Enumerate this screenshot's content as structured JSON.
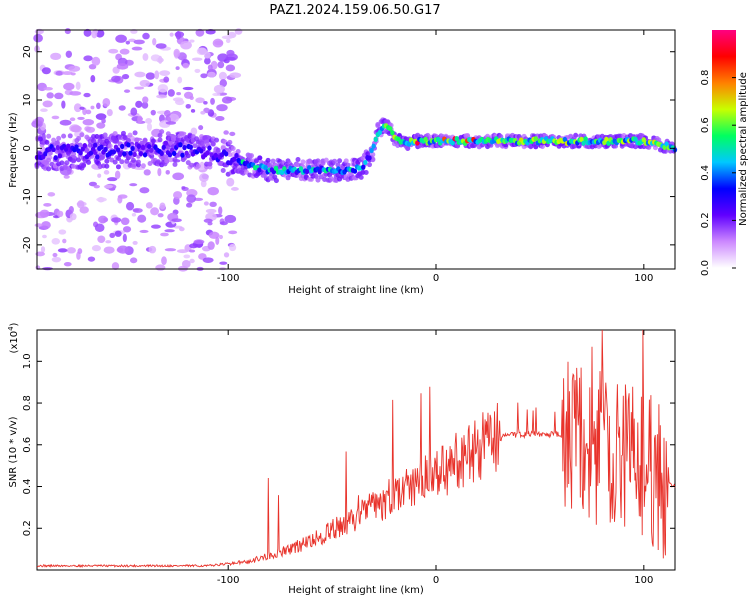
{
  "title": "PAZ1.2024.159.06.50.G17",
  "chart_data": [
    {
      "type": "heatmap",
      "xlabel": "Height of straight line (km)",
      "ylabel": "Frequency (Hz)",
      "xlim": [
        -192,
        115
      ],
      "ylim": [
        -25,
        24.5
      ],
      "x_ticks": [
        -100,
        0,
        100
      ],
      "x_tick_labels": [
        "-100",
        "0",
        "100"
      ],
      "y_ticks": [
        -20,
        -10,
        0,
        10,
        20
      ],
      "y_tick_labels": [
        "-20",
        "-10",
        "0",
        "10",
        "20"
      ],
      "colorbar": {
        "label": "Normalized spectral amplitude",
        "range": [
          0,
          1
        ],
        "ticks": [
          0.0,
          0.2,
          0.4,
          0.6,
          0.8
        ],
        "tick_labels": [
          "0.0",
          "0.2",
          "0.4",
          "0.6",
          "0.8"
        ],
        "colors": [
          "#ffffff",
          "#cc88ff",
          "#6000ff",
          "#0000ff",
          "#00c8ff",
          "#00ff60",
          "#c8ff00",
          "#ff8000",
          "#ff0000",
          "#ff0080"
        ]
      },
      "ridge": {
        "x": [
          -192,
          -160,
          -130,
          -110,
          -100,
          -90,
          -80,
          -70,
          -60,
          -50,
          -40,
          -35,
          -30,
          -28,
          -25,
          -22,
          -20,
          -15,
          -10,
          0,
          20,
          40,
          60,
          80,
          100,
          115
        ],
        "y": [
          -1,
          -0.5,
          0,
          -1,
          -2,
          -3.5,
          -4.5,
          -4.5,
          -4.5,
          -4.5,
          -4.5,
          -4,
          0,
          3,
          5,
          4,
          2,
          1,
          1.5,
          1.5,
          1.5,
          1.5,
          1.5,
          1.5,
          1.5,
          0
        ]
      }
    },
    {
      "type": "line",
      "xlabel": "Height of straight line (km)",
      "ylabel": "SNR (10 * v/v)",
      "multiplier_label": "(x10",
      "multiplier_exp": "4",
      "xlim": [
        -192,
        115
      ],
      "ylim": [
        0,
        1.15
      ],
      "x_ticks": [
        -100,
        0,
        100
      ],
      "x_tick_labels": [
        "-100",
        "0",
        "100"
      ],
      "y_ticks": [
        0.2,
        0.4,
        0.6,
        0.8,
        1.0
      ],
      "y_tick_labels": [
        "0.2",
        "0.4",
        "0.6",
        "0.8",
        "1.0"
      ],
      "series": [
        {
          "color": "#e8322a",
          "x": [
            -192,
            -160,
            -130,
            -110,
            -100,
            -90,
            -80,
            -70,
            -60,
            -50,
            -40,
            -30,
            -20,
            -10,
            0,
            10,
            20,
            30,
            35,
            40,
            50,
            60,
            70,
            80,
            90,
            100,
            110,
            115
          ],
          "y": [
            0.02,
            0.02,
            0.02,
            0.02,
            0.03,
            0.04,
            0.07,
            0.1,
            0.14,
            0.19,
            0.24,
            0.3,
            0.36,
            0.42,
            0.45,
            0.52,
            0.58,
            0.63,
            0.65,
            0.65,
            0.65,
            0.65,
            0.6,
            0.58,
            0.56,
            0.52,
            0.42,
            0.4
          ]
        }
      ]
    }
  ]
}
